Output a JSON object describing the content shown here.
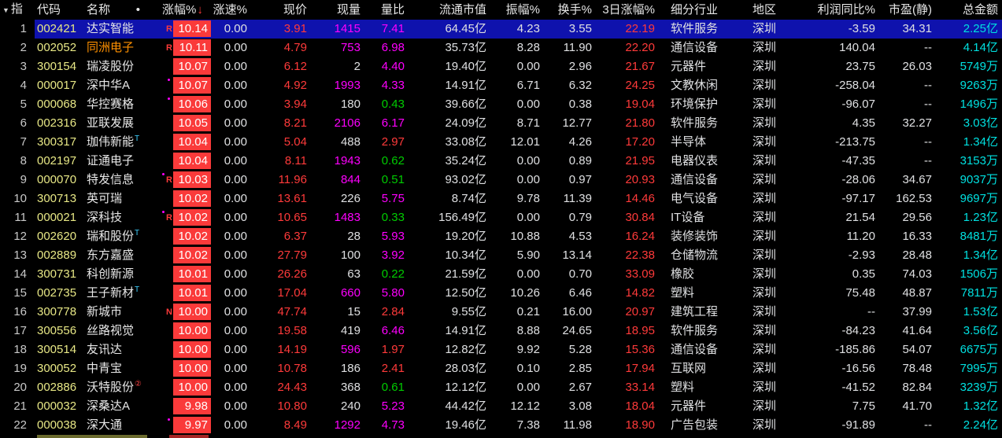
{
  "header": {
    "index_prefix": "▼",
    "index_label": "指",
    "code": "代码",
    "name": "名称",
    "name_dot": "•",
    "gain": "涨幅%",
    "sort_arrow": "↓",
    "speed": "涨速%",
    "price": "现价",
    "volume": "现量",
    "ratio": "量比",
    "mcap": "流通市值",
    "amplitude": "振幅%",
    "turnover": "换手%",
    "gain3d": "3日涨幅%",
    "industry": "细分行业",
    "region": "地区",
    "profit_yoy": "利润同比%",
    "pe_static": "市盈(静)",
    "amount": "总金额"
  },
  "colors": {
    "magenta": "#ff00ff",
    "green": "#00cc00",
    "red": "#ff3a3a",
    "box_red": "#fa3a3a",
    "cyan": "#00e0e0",
    "white": "#dfe0e2",
    "yellow_code": "#e8e886",
    "orange_name": "#ff9100",
    "name_white": "#e8e8e8",
    "selected_row_bg": "#0f12ad",
    "t_mark": "#3fd0ff",
    "circle_mark": "#ff4444"
  },
  "marks": {
    "r_label": "R",
    "n_label": "N",
    "t_suffix": "T",
    "circle_suffix": "②"
  },
  "rows": [
    {
      "n": 1,
      "code": "002421",
      "name": "达实智能",
      "nc": "w",
      "sfx": "",
      "mark": "R",
      "gain": "10.14",
      "spd": "0.00",
      "prc": "3.91",
      "vol": "1415",
      "volc": "m",
      "vr": "7.41",
      "vrc": "m",
      "mcap": "64.45亿",
      "amp": "4.23",
      "turn": "3.55",
      "d3": "22.19",
      "ind": "软件服务",
      "reg": "深圳",
      "pft": "-3.59",
      "pe": "34.31",
      "amt": "2.25亿",
      "sel": true
    },
    {
      "n": 2,
      "code": "002052",
      "name": "同洲电子",
      "nc": "o",
      "sfx": "",
      "mark": "R",
      "gain": "10.11",
      "spd": "0.00",
      "prc": "4.79",
      "vol": "753",
      "volc": "m",
      "vr": "6.98",
      "vrc": "m",
      "mcap": "35.73亿",
      "amp": "8.28",
      "turn": "11.90",
      "d3": "22.20",
      "ind": "通信设备",
      "reg": "深圳",
      "pft": "140.04",
      "pe": "--",
      "amt": "4.14亿",
      "sel": false
    },
    {
      "n": 3,
      "code": "300154",
      "name": "瑞凌股份",
      "nc": "w",
      "sfx": "",
      "mark": "",
      "gain": "10.07",
      "spd": "0.00",
      "prc": "6.12",
      "vol": "2",
      "volc": "w",
      "vr": "4.40",
      "vrc": "m",
      "mcap": "19.40亿",
      "amp": "0.00",
      "turn": "2.96",
      "d3": "21.67",
      "ind": "元器件",
      "reg": "深圳",
      "pft": "23.75",
      "pe": "26.03",
      "amt": "5749万",
      "sel": false
    },
    {
      "n": 4,
      "code": "000017",
      "name": "深中华A",
      "nc": "w",
      "sfx": "",
      "mark": "d",
      "gain": "10.07",
      "spd": "0.00",
      "prc": "4.92",
      "vol": "1993",
      "volc": "m",
      "vr": "4.33",
      "vrc": "m",
      "mcap": "14.91亿",
      "amp": "6.71",
      "turn": "6.32",
      "d3": "24.25",
      "ind": "文教休闲",
      "reg": "深圳",
      "pft": "-258.04",
      "pe": "--",
      "amt": "9263万",
      "sel": false
    },
    {
      "n": 5,
      "code": "000068",
      "name": "华控赛格",
      "nc": "w",
      "sfx": "",
      "mark": "d",
      "gain": "10.06",
      "spd": "0.00",
      "prc": "3.94",
      "vol": "180",
      "volc": "w",
      "vr": "0.43",
      "vrc": "g",
      "mcap": "39.66亿",
      "amp": "0.00",
      "turn": "0.38",
      "d3": "19.04",
      "ind": "环境保护",
      "reg": "深圳",
      "pft": "-96.07",
      "pe": "--",
      "amt": "1496万",
      "sel": false
    },
    {
      "n": 6,
      "code": "002316",
      "name": "亚联发展",
      "nc": "w",
      "sfx": "",
      "mark": "",
      "gain": "10.05",
      "spd": "0.00",
      "prc": "8.21",
      "vol": "2106",
      "volc": "m",
      "vr": "6.17",
      "vrc": "m",
      "mcap": "24.09亿",
      "amp": "8.71",
      "turn": "12.77",
      "d3": "21.80",
      "ind": "软件服务",
      "reg": "深圳",
      "pft": "4.35",
      "pe": "32.27",
      "amt": "3.03亿",
      "sel": false
    },
    {
      "n": 7,
      "code": "300317",
      "name": "珈伟新能",
      "nc": "w",
      "sfx": "T",
      "mark": "",
      "gain": "10.04",
      "spd": "0.00",
      "prc": "5.04",
      "vol": "488",
      "volc": "w",
      "vr": "2.97",
      "vrc": "r",
      "mcap": "33.08亿",
      "amp": "12.01",
      "turn": "4.26",
      "d3": "17.20",
      "ind": "半导体",
      "reg": "深圳",
      "pft": "-213.75",
      "pe": "--",
      "amt": "1.34亿",
      "sel": false
    },
    {
      "n": 8,
      "code": "002197",
      "name": "证通电子",
      "nc": "w",
      "sfx": "",
      "mark": "",
      "gain": "10.04",
      "spd": "0.00",
      "prc": "8.11",
      "vol": "1943",
      "volc": "m",
      "vr": "0.62",
      "vrc": "g",
      "mcap": "35.24亿",
      "amp": "0.00",
      "turn": "0.89",
      "d3": "21.95",
      "ind": "电器仪表",
      "reg": "深圳",
      "pft": "-47.35",
      "pe": "--",
      "amt": "3153万",
      "sel": false
    },
    {
      "n": 9,
      "code": "000070",
      "name": "特发信息",
      "nc": "w",
      "sfx": "",
      "mark": "Rd",
      "gain": "10.03",
      "spd": "0.00",
      "prc": "11.96",
      "vol": "844",
      "volc": "m",
      "vr": "0.51",
      "vrc": "g",
      "mcap": "93.02亿",
      "amp": "0.00",
      "turn": "0.97",
      "d3": "20.93",
      "ind": "通信设备",
      "reg": "深圳",
      "pft": "-28.06",
      "pe": "34.67",
      "amt": "9037万",
      "sel": false
    },
    {
      "n": 10,
      "code": "300713",
      "name": "英可瑞",
      "nc": "w",
      "sfx": "",
      "mark": "",
      "gain": "10.02",
      "spd": "0.00",
      "prc": "13.61",
      "vol": "226",
      "volc": "w",
      "vr": "5.75",
      "vrc": "m",
      "mcap": "8.74亿",
      "amp": "9.78",
      "turn": "11.39",
      "d3": "14.46",
      "ind": "电气设备",
      "reg": "深圳",
      "pft": "-97.17",
      "pe": "162.53",
      "amt": "9697万",
      "sel": false
    },
    {
      "n": 11,
      "code": "000021",
      "name": "深科技",
      "nc": "w",
      "sfx": "",
      "mark": "Rd",
      "gain": "10.02",
      "spd": "0.00",
      "prc": "10.65",
      "vol": "1483",
      "volc": "m",
      "vr": "0.33",
      "vrc": "g",
      "mcap": "156.49亿",
      "amp": "0.00",
      "turn": "0.79",
      "d3": "30.84",
      "ind": "IT设备",
      "reg": "深圳",
      "pft": "21.54",
      "pe": "29.56",
      "amt": "1.23亿",
      "sel": false
    },
    {
      "n": 12,
      "code": "002620",
      "name": "瑞和股份",
      "nc": "w",
      "sfx": "T",
      "mark": "",
      "gain": "10.02",
      "spd": "0.00",
      "prc": "6.37",
      "vol": "28",
      "volc": "w",
      "vr": "5.93",
      "vrc": "m",
      "mcap": "19.20亿",
      "amp": "10.88",
      "turn": "4.53",
      "d3": "16.24",
      "ind": "装修装饰",
      "reg": "深圳",
      "pft": "11.20",
      "pe": "16.33",
      "amt": "8481万",
      "sel": false
    },
    {
      "n": 13,
      "code": "002889",
      "name": "东方嘉盛",
      "nc": "w",
      "sfx": "",
      "mark": "",
      "gain": "10.02",
      "spd": "0.00",
      "prc": "27.79",
      "vol": "100",
      "volc": "w",
      "vr": "3.92",
      "vrc": "m",
      "mcap": "10.34亿",
      "amp": "5.90",
      "turn": "13.14",
      "d3": "22.38",
      "ind": "仓储物流",
      "reg": "深圳",
      "pft": "-2.93",
      "pe": "28.48",
      "amt": "1.34亿",
      "sel": false
    },
    {
      "n": 14,
      "code": "300731",
      "name": "科创新源",
      "nc": "w",
      "sfx": "",
      "mark": "",
      "gain": "10.01",
      "spd": "0.00",
      "prc": "26.26",
      "vol": "63",
      "volc": "w",
      "vr": "0.22",
      "vrc": "g",
      "mcap": "21.59亿",
      "amp": "0.00",
      "turn": "0.70",
      "d3": "33.09",
      "ind": "橡胶",
      "reg": "深圳",
      "pft": "0.35",
      "pe": "74.03",
      "amt": "1506万",
      "sel": false
    },
    {
      "n": 15,
      "code": "002735",
      "name": "王子新材",
      "nc": "w",
      "sfx": "T",
      "mark": "",
      "gain": "10.01",
      "spd": "0.00",
      "prc": "17.04",
      "vol": "660",
      "volc": "m",
      "vr": "5.80",
      "vrc": "m",
      "mcap": "12.50亿",
      "amp": "10.26",
      "turn": "6.46",
      "d3": "14.82",
      "ind": "塑料",
      "reg": "深圳",
      "pft": "75.48",
      "pe": "48.87",
      "amt": "7811万",
      "sel": false
    },
    {
      "n": 16,
      "code": "300778",
      "name": "新城市",
      "nc": "w",
      "sfx": "",
      "mark": "N",
      "gain": "10.00",
      "spd": "0.00",
      "prc": "47.74",
      "vol": "15",
      "volc": "w",
      "vr": "2.84",
      "vrc": "r",
      "mcap": "9.55亿",
      "amp": "0.21",
      "turn": "16.00",
      "d3": "20.97",
      "ind": "建筑工程",
      "reg": "深圳",
      "pft": "--",
      "pe": "37.99",
      "amt": "1.53亿",
      "sel": false
    },
    {
      "n": 17,
      "code": "300556",
      "name": "丝路视觉",
      "nc": "w",
      "sfx": "",
      "mark": "",
      "gain": "10.00",
      "spd": "0.00",
      "prc": "19.58",
      "vol": "419",
      "volc": "w",
      "vr": "6.46",
      "vrc": "m",
      "mcap": "14.91亿",
      "amp": "8.88",
      "turn": "24.65",
      "d3": "18.95",
      "ind": "软件服务",
      "reg": "深圳",
      "pft": "-84.23",
      "pe": "41.64",
      "amt": "3.56亿",
      "sel": false
    },
    {
      "n": 18,
      "code": "300514",
      "name": "友讯达",
      "nc": "w",
      "sfx": "",
      "mark": "",
      "gain": "10.00",
      "spd": "0.00",
      "prc": "14.19",
      "vol": "596",
      "volc": "m",
      "vr": "1.97",
      "vrc": "r",
      "mcap": "12.82亿",
      "amp": "9.92",
      "turn": "5.28",
      "d3": "15.36",
      "ind": "通信设备",
      "reg": "深圳",
      "pft": "-185.86",
      "pe": "54.07",
      "amt": "6675万",
      "sel": false
    },
    {
      "n": 19,
      "code": "300052",
      "name": "中青宝",
      "nc": "w",
      "sfx": "",
      "mark": "",
      "gain": "10.00",
      "spd": "0.00",
      "prc": "10.78",
      "vol": "186",
      "volc": "w",
      "vr": "2.41",
      "vrc": "r",
      "mcap": "28.03亿",
      "amp": "0.10",
      "turn": "2.85",
      "d3": "17.94",
      "ind": "互联网",
      "reg": "深圳",
      "pft": "-16.56",
      "pe": "78.48",
      "amt": "7995万",
      "sel": false
    },
    {
      "n": 20,
      "code": "002886",
      "name": "沃特股份",
      "nc": "w",
      "sfx": "c2",
      "mark": "",
      "gain": "10.00",
      "spd": "0.00",
      "prc": "24.43",
      "vol": "368",
      "volc": "w",
      "vr": "0.61",
      "vrc": "g",
      "mcap": "12.12亿",
      "amp": "0.00",
      "turn": "2.67",
      "d3": "33.14",
      "ind": "塑料",
      "reg": "深圳",
      "pft": "-41.52",
      "pe": "82.84",
      "amt": "3239万",
      "sel": false
    },
    {
      "n": 21,
      "code": "000032",
      "name": "深桑达A",
      "nc": "w",
      "sfx": "",
      "mark": "",
      "gain": "9.98",
      "spd": "0.00",
      "prc": "10.80",
      "vol": "240",
      "volc": "w",
      "vr": "5.23",
      "vrc": "m",
      "mcap": "44.42亿",
      "amp": "12.12",
      "turn": "3.08",
      "d3": "18.04",
      "ind": "元器件",
      "reg": "深圳",
      "pft": "7.75",
      "pe": "41.70",
      "amt": "1.32亿",
      "sel": false
    },
    {
      "n": 22,
      "code": "000038",
      "name": "深大通",
      "nc": "w",
      "sfx": "",
      "mark": "d",
      "gain": "9.97",
      "spd": "0.00",
      "prc": "8.49",
      "vol": "1292",
      "volc": "m",
      "vr": "4.73",
      "vrc": "m",
      "mcap": "19.46亿",
      "amp": "7.38",
      "turn": "11.98",
      "d3": "18.90",
      "ind": "广告包装",
      "reg": "深圳",
      "pft": "-91.89",
      "pe": "--",
      "amt": "2.24亿",
      "sel": false
    }
  ]
}
